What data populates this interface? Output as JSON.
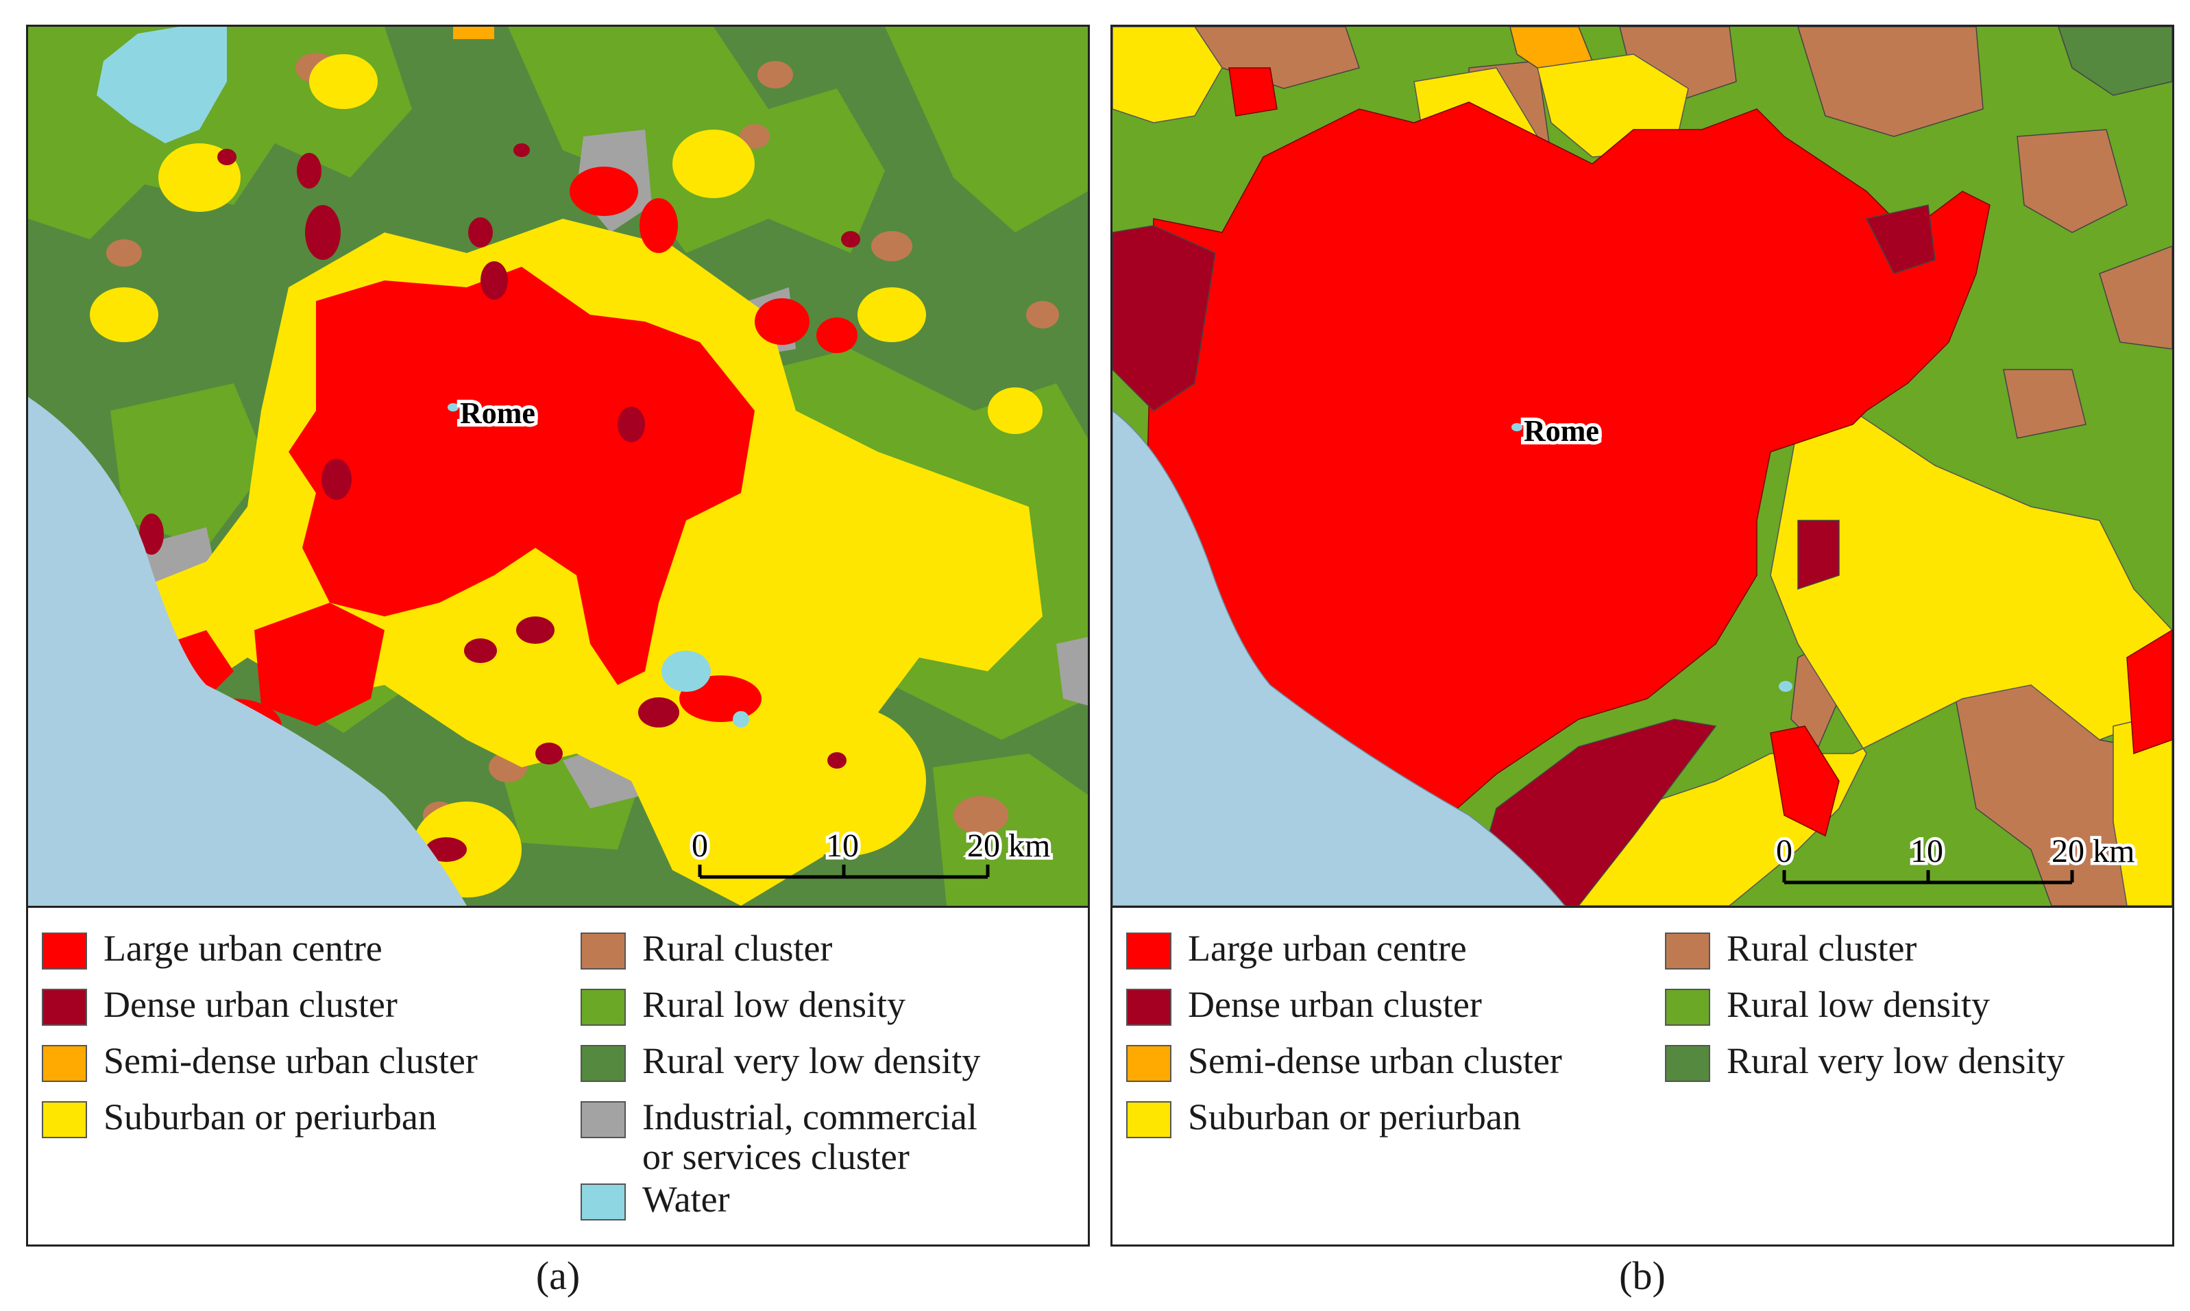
{
  "colors": {
    "large_urban_centre": "#ff0000",
    "dense_urban_cluster": "#a50021",
    "semi_dense_urban_cluster": "#ffaa00",
    "suburban_or_periurban": "#ffe600",
    "rural_cluster": "#c07a52",
    "rural_low_density": "#6aa826",
    "rural_very_low_density": "#55893f",
    "industrial_cluster": "#a3a3a3",
    "water": "#8fd6e3",
    "sea": "#a9cee1"
  },
  "panel_a": {
    "city_label": "Rome",
    "scale": {
      "ticks": [
        "0",
        "10",
        "20 km"
      ]
    },
    "legend": [
      {
        "key": "large_urban_centre",
        "label": "Large urban centre"
      },
      {
        "key": "dense_urban_cluster",
        "label": "Dense urban cluster"
      },
      {
        "key": "semi_dense_urban_cluster",
        "label": "Semi-dense urban cluster"
      },
      {
        "key": "suburban_or_periurban",
        "label": "Suburban or periurban"
      },
      {
        "key": "rural_cluster",
        "label": "Rural cluster"
      },
      {
        "key": "rural_low_density",
        "label": "Rural low density"
      },
      {
        "key": "rural_very_low_density",
        "label": "Rural very low density"
      },
      {
        "key": "industrial_cluster",
        "label": "Industrial, commercial",
        "label2": "or services cluster"
      },
      {
        "key": "water",
        "label": "Water"
      }
    ],
    "caption": "(a)"
  },
  "panel_b": {
    "city_label": "Rome",
    "scale": {
      "ticks": [
        "0",
        "10",
        "20 km"
      ]
    },
    "legend": [
      {
        "key": "large_urban_centre",
        "label": "Large urban centre"
      },
      {
        "key": "dense_urban_cluster",
        "label": "Dense urban cluster"
      },
      {
        "key": "semi_dense_urban_cluster",
        "label": "Semi-dense urban cluster"
      },
      {
        "key": "suburban_or_periurban",
        "label": "Suburban or periurban"
      },
      {
        "key": "rural_cluster",
        "label": "Rural cluster"
      },
      {
        "key": "rural_low_density",
        "label": "Rural low density"
      },
      {
        "key": "rural_very_low_density",
        "label": "Rural very low density"
      }
    ],
    "caption": "(b)"
  }
}
